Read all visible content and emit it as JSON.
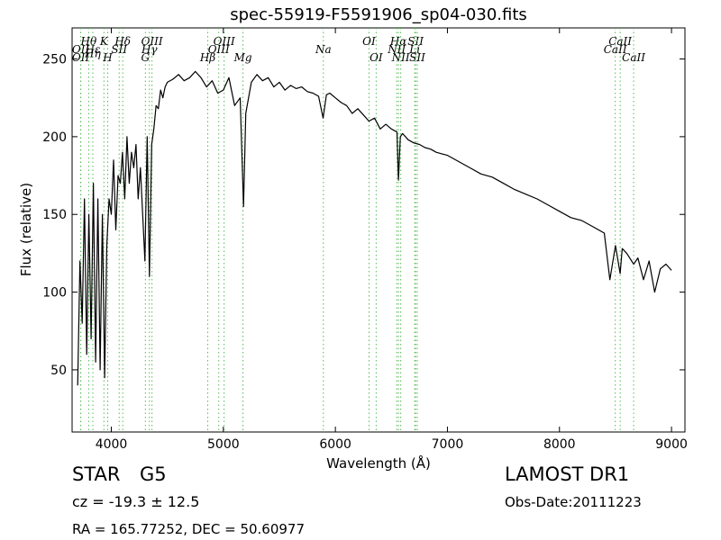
{
  "chart_data": {
    "type": "line",
    "title": "spec-55919-F5591906_sp04-030.fits",
    "xlabel": "Wavelength (Å)",
    "ylabel": "Flux (relative)",
    "xlim": [
      3650,
      9120
    ],
    "ylim": [
      10,
      270
    ],
    "xticks": [
      4000,
      5000,
      6000,
      7000,
      8000,
      9000
    ],
    "yticks": [
      50,
      100,
      150,
      200,
      250
    ],
    "grid": false,
    "line_color": "#000000",
    "line_marker_color": "#55bb55",
    "series": [
      {
        "x": [
          3700,
          3720,
          3740,
          3760,
          3780,
          3800,
          3820,
          3840,
          3860,
          3880,
          3900,
          3920,
          3940,
          3960,
          3980,
          4000,
          4020,
          4040,
          4060,
          4080,
          4100,
          4120,
          4140,
          4160,
          4180,
          4200,
          4220,
          4240,
          4260,
          4280,
          4300,
          4320,
          4340,
          4360,
          4380,
          4400,
          4420,
          4440,
          4460,
          4480,
          4500,
          4550,
          4600,
          4650,
          4700,
          4750,
          4800,
          4850,
          4900,
          4950,
          5000,
          5050,
          5100,
          5150,
          5180,
          5200,
          5250,
          5300,
          5350,
          5400,
          5450,
          5500,
          5550,
          5600,
          5650,
          5700,
          5750,
          5800,
          5850,
          5890,
          5920,
          5950,
          6000,
          6050,
          6100,
          6150,
          6200,
          6250,
          6300,
          6350,
          6400,
          6450,
          6500,
          6550,
          6563,
          6580,
          6600,
          6650,
          6700,
          6750,
          6800,
          6850,
          6900,
          6950,
          7000,
          7100,
          7200,
          7300,
          7400,
          7500,
          7600,
          7700,
          7800,
          7900,
          8000,
          8100,
          8200,
          8300,
          8400,
          8450,
          8500,
          8542,
          8560,
          8600,
          8662,
          8700,
          8750,
          8800,
          8850,
          8900,
          8950,
          9000
        ],
        "y": [
          40,
          120,
          80,
          160,
          60,
          150,
          70,
          170,
          55,
          160,
          50,
          150,
          45,
          130,
          160,
          150,
          185,
          140,
          175,
          170,
          190,
          160,
          200,
          170,
          190,
          180,
          195,
          160,
          180,
          150,
          120,
          200,
          110,
          195,
          205,
          220,
          218,
          230,
          225,
          232,
          235,
          237,
          240,
          236,
          238,
          242,
          238,
          232,
          236,
          228,
          230,
          238,
          220,
          225,
          155,
          215,
          235,
          240,
          236,
          238,
          232,
          235,
          230,
          233,
          231,
          232,
          229,
          228,
          226,
          212,
          227,
          228,
          225,
          222,
          220,
          215,
          218,
          214,
          210,
          212,
          205,
          208,
          205,
          203,
          172,
          200,
          202,
          198,
          196,
          195,
          193,
          192,
          190,
          189,
          188,
          184,
          180,
          176,
          174,
          170,
          166,
          163,
          160,
          156,
          152,
          148,
          146,
          142,
          138,
          108,
          130,
          112,
          128,
          125,
          118,
          122,
          108,
          120,
          100,
          115,
          118,
          114
        ]
      }
    ],
    "lines": {
      "top_row": [
        {
          "label": "Hθ",
          "x": 3798,
          "dy": 0
        },
        {
          "label": "K",
          "x": 3934,
          "dy": 0
        },
        {
          "label": "Hδ",
          "x": 4102,
          "dy": 0
        },
        {
          "label": "OIII",
          "x": 4363,
          "dy": 0
        },
        {
          "label": "OIII",
          "x": 5007,
          "dy": 0
        },
        {
          "label": "OI",
          "x": 6300,
          "dy": 0
        },
        {
          "label": "Hα",
          "x": 6563,
          "dy": 0
        },
        {
          "label": "SII",
          "x": 6716,
          "dy": 0
        },
        {
          "label": "CaII",
          "x": 8542,
          "dy": 0
        }
      ],
      "mid_row": [
        {
          "label": "OII",
          "x": 3727,
          "dy": 1
        },
        {
          "label": "Hε",
          "x": 3835,
          "dy": 1
        },
        {
          "label": "SII",
          "x": 4070,
          "dy": 1
        },
        {
          "label": "Hγ",
          "x": 4340,
          "dy": 1
        },
        {
          "label": "OIII",
          "x": 4959,
          "dy": 1
        },
        {
          "label": "Na",
          "x": 5893,
          "dy": 1
        },
        {
          "label": "NII",
          "x": 6548,
          "dy": 1
        },
        {
          "label": "Li",
          "x": 6708,
          "dy": 1
        },
        {
          "label": "CaII",
          "x": 8498,
          "dy": 1
        }
      ],
      "bot_row": [
        {
          "label": "Hη",
          "x": 3835,
          "dy": 1.5
        },
        {
          "label": "OII",
          "x": 3727,
          "dy": 2
        },
        {
          "label": "H",
          "x": 3968,
          "dy": 2
        },
        {
          "label": "G",
          "x": 4304,
          "dy": 2
        },
        {
          "label": "Hβ",
          "x": 4861,
          "dy": 2
        },
        {
          "label": "Mg",
          "x": 5175,
          "dy": 2
        },
        {
          "label": "OI",
          "x": 6364,
          "dy": 2
        },
        {
          "label": "NII",
          "x": 6583,
          "dy": 2
        },
        {
          "label": "SII",
          "x": 6731,
          "dy": 2
        },
        {
          "label": "CaII",
          "x": 8662,
          "dy": 2
        }
      ]
    }
  },
  "info": {
    "class_label": "STAR",
    "subclass_label": "G5",
    "survey": "LAMOST DR1",
    "redshift": "cz = -19.3 ± 12.5",
    "obs_date": "Obs-Date:20111223",
    "coords": "RA = 165.77252, DEC = 50.60977"
  }
}
